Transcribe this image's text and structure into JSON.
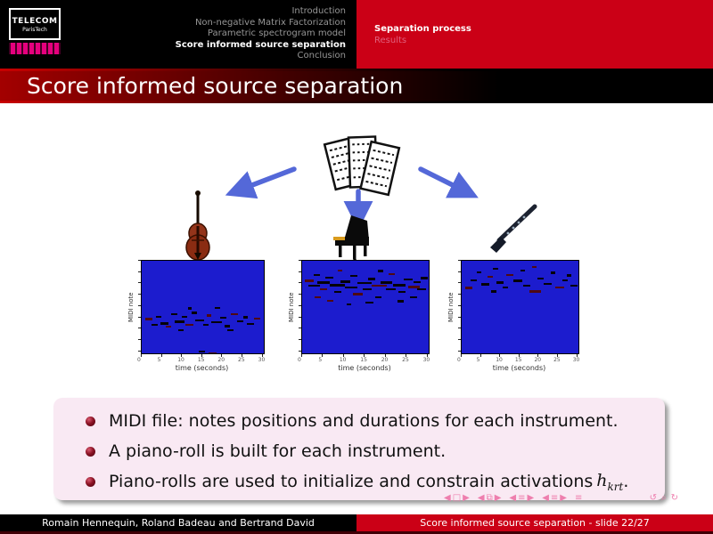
{
  "header": {
    "logo": {
      "line1": "TELECOM",
      "line2": "ParisTech"
    },
    "nav_sections": [
      {
        "label": "Introduction",
        "current": false
      },
      {
        "label": "Non-negative Matrix Factorization",
        "current": false
      },
      {
        "label": "Parametric spectrogram model",
        "current": false
      },
      {
        "label": "Score informed source separation",
        "current": true
      },
      {
        "label": "Conclusion",
        "current": false
      }
    ],
    "nav_subsections": [
      {
        "label": "Separation process",
        "current": true
      },
      {
        "label": "Results",
        "current": false
      }
    ]
  },
  "title_bar": {
    "title": "Score informed source separation"
  },
  "figures": {
    "sheet_music": "sheet-music-pages",
    "instruments": [
      "double bass",
      "grand piano",
      "clarinet"
    ]
  },
  "plots": [
    {
      "instrument": "double bass",
      "ylabel": "MIDI note",
      "xlabel": "time (seconds)",
      "x_ticks": [
        "0",
        "5",
        "10",
        "15",
        "20",
        "25",
        "30"
      ],
      "notes": [
        [
          3,
          62,
          6
        ],
        [
          8,
          68,
          5
        ],
        [
          12,
          60,
          4
        ],
        [
          15,
          66,
          7
        ],
        [
          20,
          70,
          4
        ],
        [
          24,
          57,
          5
        ],
        [
          27,
          64,
          8
        ],
        [
          33,
          60,
          4
        ],
        [
          36,
          68,
          6
        ],
        [
          41,
          55,
          4
        ],
        [
          44,
          63,
          7
        ],
        [
          50,
          68,
          5
        ],
        [
          53,
          58,
          4
        ],
        [
          57,
          65,
          9
        ],
        [
          64,
          61,
          5
        ],
        [
          68,
          69,
          4
        ],
        [
          73,
          57,
          6
        ],
        [
          78,
          64,
          5
        ],
        [
          83,
          60,
          4
        ],
        [
          86,
          67,
          6
        ],
        [
          92,
          62,
          5
        ],
        [
          38,
          50,
          3
        ],
        [
          60,
          50,
          4
        ],
        [
          47,
          97,
          5
        ],
        [
          55,
          99,
          6
        ],
        [
          30,
          74,
          4
        ],
        [
          70,
          74,
          5
        ]
      ]
    },
    {
      "instrument": "grand piano",
      "ylabel": "MIDI note",
      "xlabel": "time (seconds)",
      "x_ticks": [
        "0",
        "5",
        "10",
        "15",
        "20",
        "25",
        "30"
      ],
      "notes": [
        [
          2,
          20,
          7
        ],
        [
          5,
          26,
          9
        ],
        [
          9,
          14,
          5
        ],
        [
          12,
          22,
          10
        ],
        [
          14,
          30,
          6
        ],
        [
          18,
          17,
          7
        ],
        [
          22,
          25,
          12
        ],
        [
          25,
          33,
          6
        ],
        [
          28,
          10,
          4
        ],
        [
          30,
          21,
          8
        ],
        [
          34,
          28,
          10
        ],
        [
          38,
          15,
          6
        ],
        [
          40,
          35,
          8
        ],
        [
          44,
          23,
          11
        ],
        [
          48,
          30,
          7
        ],
        [
          52,
          18,
          6
        ],
        [
          55,
          26,
          12
        ],
        [
          58,
          38,
          5
        ],
        [
          62,
          22,
          9
        ],
        [
          66,
          30,
          8
        ],
        [
          68,
          13,
          5
        ],
        [
          72,
          25,
          10
        ],
        [
          76,
          33,
          6
        ],
        [
          80,
          19,
          7
        ],
        [
          84,
          27,
          9
        ],
        [
          88,
          22,
          6
        ],
        [
          91,
          30,
          7
        ],
        [
          94,
          17,
          5
        ],
        [
          20,
          42,
          5
        ],
        [
          50,
          44,
          6
        ],
        [
          75,
          42,
          5
        ],
        [
          35,
          46,
          4
        ],
        [
          10,
          38,
          5
        ],
        [
          60,
          10,
          4
        ],
        [
          85,
          38,
          6
        ]
      ]
    },
    {
      "instrument": "clarinet",
      "ylabel": "MIDI note",
      "xlabel": "time (seconds)",
      "x_ticks": [
        "0",
        "5",
        "10",
        "15",
        "20",
        "25",
        "30"
      ],
      "notes": [
        [
          3,
          28,
          6
        ],
        [
          8,
          20,
          5
        ],
        [
          13,
          12,
          4
        ],
        [
          17,
          24,
          7
        ],
        [
          22,
          16,
          5
        ],
        [
          27,
          8,
          4
        ],
        [
          30,
          22,
          6
        ],
        [
          35,
          28,
          5
        ],
        [
          38,
          14,
          6
        ],
        [
          44,
          20,
          8
        ],
        [
          50,
          10,
          4
        ],
        [
          53,
          26,
          6
        ],
        [
          58,
          32,
          10
        ],
        [
          65,
          18,
          5
        ],
        [
          70,
          24,
          7
        ],
        [
          76,
          12,
          4
        ],
        [
          80,
          28,
          8
        ],
        [
          86,
          20,
          5
        ],
        [
          90,
          14,
          4
        ],
        [
          93,
          26,
          6
        ],
        [
          60,
          6,
          4
        ],
        [
          25,
          32,
          5
        ]
      ]
    }
  ],
  "block": {
    "items": [
      {
        "segments": [
          {
            "t": "text",
            "v": "MIDI file: notes positions and durations for each instrument."
          }
        ]
      },
      {
        "segments": [
          {
            "t": "text",
            "v": "A piano-roll is built for each instrument."
          }
        ]
      },
      {
        "segments": [
          {
            "t": "text",
            "v": "Piano-rolls are used to initialize and constrain activations"
          },
          {
            "t": "math",
            "base": "h",
            "sub": "krt"
          },
          {
            "t": "text",
            "v": "."
          }
        ]
      }
    ]
  },
  "nav_symbols": {
    "groups": [
      {
        "name": "frame-nav",
        "glyphs": [
          "◀",
          "□",
          "▶"
        ]
      },
      {
        "name": "frame-group-nav",
        "glyphs": [
          "◀",
          "⧉",
          "▶"
        ]
      },
      {
        "name": "subsection-nav",
        "glyphs": [
          "◀",
          "≡",
          "▶"
        ]
      },
      {
        "name": "section-nav",
        "glyphs": [
          "◀",
          "≡",
          "▶"
        ]
      },
      {
        "name": "appendix-nav",
        "glyphs": [
          "≡"
        ]
      },
      {
        "name": "history-search-nav",
        "glyphs": [
          "↺",
          "⌕",
          "↻"
        ]
      }
    ]
  },
  "footer": {
    "authors": "Romain Hennequin, Roland Badeau and Bertrand David",
    "short_title": "Score informed source separation - slide 22/27"
  },
  "colors": {
    "accent_red": "#cb0016",
    "arrow_blue": "#5468d8",
    "plot_blue": "#1c1cce",
    "block_bg": "#f9e9f3",
    "nav_pink": "#ee7fae",
    "bullet_red": "#8c1325",
    "logo_magenta": "#e5007d"
  }
}
